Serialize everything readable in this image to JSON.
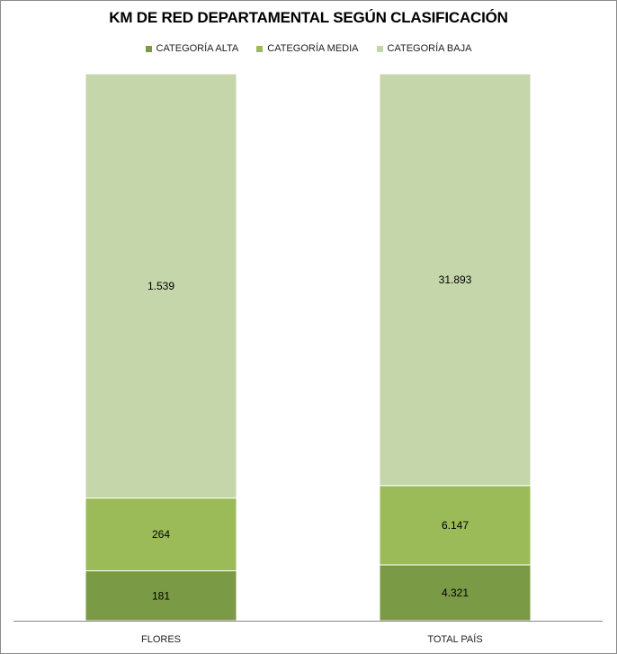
{
  "chart_data": {
    "type": "bar",
    "stacked": "percent",
    "title": "KM DE RED DEPARTAMENTAL SEGÚN CLASIFICACIÓN",
    "categories": [
      "FLORES",
      "TOTAL PAÍS"
    ],
    "series": [
      {
        "name": "CATEGORÍA ALTA",
        "values": [
          181,
          4321
        ],
        "labels": [
          "181",
          "4.321"
        ],
        "color": "#7a9a45"
      },
      {
        "name": "CATEGORÍA MEDIA",
        "values": [
          264,
          6147
        ],
        "labels": [
          "264",
          "6.147"
        ],
        "color": "#9bbb59"
      },
      {
        "name": "CATEGORÍA BAJA",
        "values": [
          1539,
          31893
        ],
        "labels": [
          "1.539",
          "31.893"
        ],
        "color": "#c5d6ab"
      }
    ],
    "legend_position": "top",
    "grid": false
  }
}
